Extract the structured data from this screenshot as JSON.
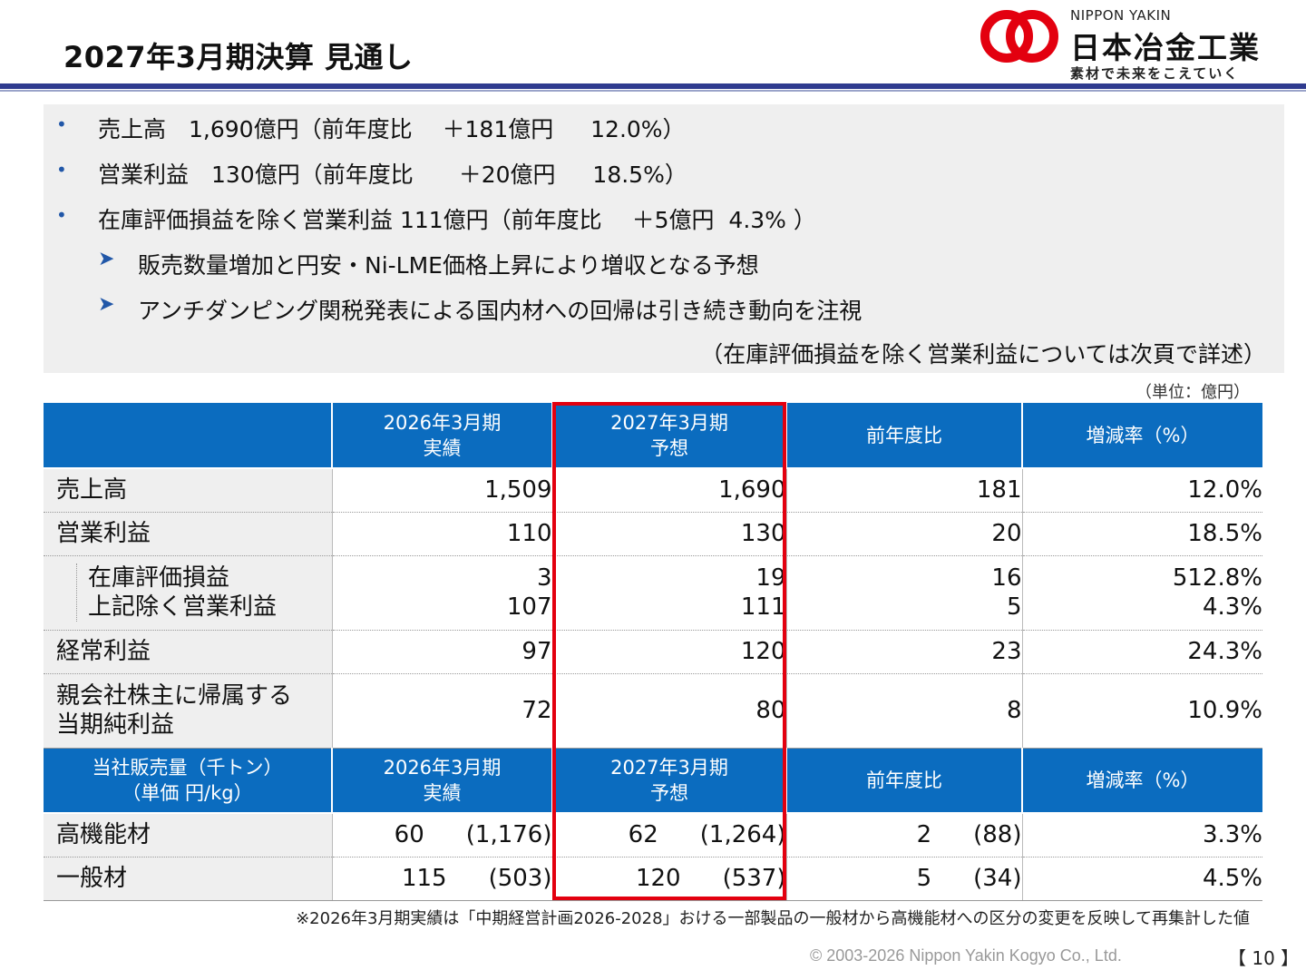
{
  "header": {
    "title": "2027年3月期決算 見通し",
    "logo_en": "NIPPON YAKIN",
    "logo_jp": "日本冶金工業",
    "logo_tagline": "素材で未来をこえていく"
  },
  "summary": {
    "bullets": [
      "売上高　1,690億円（前年度比　 ＋181億円 　 12.0%）",
      "営業利益　130億円（前年度比　　＋20億円 　 18.5%）",
      "在庫評価損益を除く営業利益 111億円（前年度比　 ＋5億円  4.3% ）"
    ],
    "subpoints": [
      "販売数量増加と円安・Ni-LME価格上昇により増収となる予想",
      "アンチダンピング関税発表による国内材への回帰は引き続き動向を注視"
    ],
    "note": "（在庫評価損益を除く営業利益については次頁で詳述）"
  },
  "unit": "（単位：億円）",
  "table1": {
    "headers": [
      "",
      "2026年3月期\n実績",
      "2027年3月期\n予想",
      "前年度比",
      "増減率（%）"
    ],
    "rows": [
      {
        "label": "売上高",
        "c1": "1,509",
        "c2": "1,690",
        "c3": "181",
        "c4": "12.0%"
      },
      {
        "label": "営業利益",
        "c1": "110",
        "c2": "130",
        "c3": "20",
        "c4": "18.5%"
      },
      {
        "label_a": "在庫評価損益",
        "label_b": "上記除く営業利益",
        "c1a": "3",
        "c1b": "107",
        "c2a": "19",
        "c2b": "111",
        "c3a": "16",
        "c3b": "5",
        "c4a": "512.8%",
        "c4b": "4.3%"
      },
      {
        "label": "経常利益",
        "c1": "97",
        "c2": "120",
        "c3": "23",
        "c4": "24.3%"
      },
      {
        "label_a": "親会社株主に帰属する",
        "label_b": "当期純利益",
        "c1": "72",
        "c2": "80",
        "c3": "8",
        "c4": "10.9%"
      }
    ]
  },
  "table2": {
    "headers": [
      "当社販売量（千トン）\n（単価 円/kg）",
      "2026年3月期\n実績",
      "2027年3月期\n予想",
      "前年度比",
      "増減率（%）"
    ],
    "rows": [
      {
        "label": "高機能材",
        "c1q": "60",
        "c1p": "(1,176)",
        "c2q": "62",
        "c2p": "(1,264)",
        "c3q": "2",
        "c3p": "(88)",
        "c4": "3.3%"
      },
      {
        "label": "一般材",
        "c1q": "115",
        "c1p": "(503)",
        "c2q": "120",
        "c2p": "(537)",
        "c3q": "5",
        "c3p": "(34)",
        "c4": "4.5%"
      }
    ]
  },
  "footnote": "※2026年3月期実績は「中期経営計画2026-2028」おける一部製品の一般材から高機能材への区分の変更を反映して再集計した値",
  "copyright": "© 2003-2026 Nippon Yakin Kogyo Co., Ltd.",
  "page": "【 10 】",
  "colors": {
    "accent": "#0b6cbf",
    "rule": "#2f3b8f",
    "highlight": "#e3000f",
    "logo": "#e3000f"
  }
}
